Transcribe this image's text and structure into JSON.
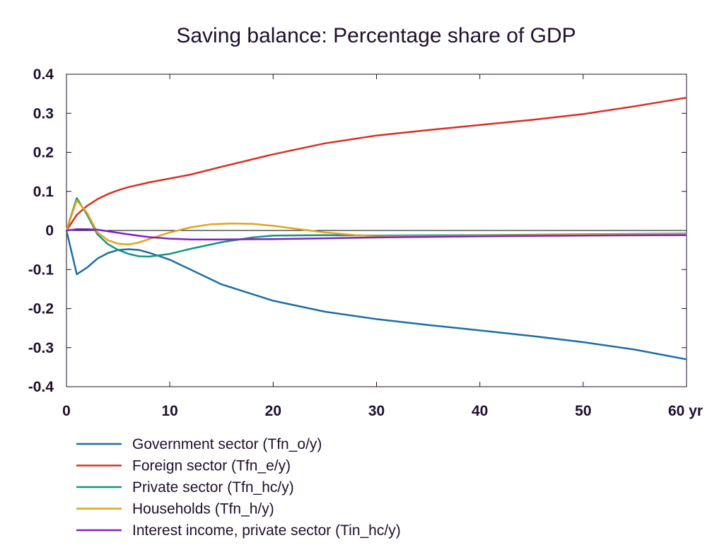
{
  "chart_data": {
    "type": "line",
    "title": "Saving balance: Percentage share of GDP",
    "xlabel": "",
    "ylabel": "",
    "x_unit_label": "yr",
    "xlim": [
      0,
      60
    ],
    "ylim": [
      -0.4,
      0.4
    ],
    "x_ticks": [
      0,
      10,
      20,
      30,
      40,
      50,
      60
    ],
    "x_tick_labels": [
      "0",
      "10",
      "20",
      "30",
      "40",
      "50",
      "60 yr"
    ],
    "y_ticks": [
      -0.4,
      -0.3,
      -0.2,
      -0.1,
      0,
      0.1,
      0.2,
      0.3,
      0.4
    ],
    "y_tick_labels": [
      "-0.4",
      "-0.3",
      "-0.2",
      "-0.1",
      "0",
      "0.1",
      "0.2",
      "0.3",
      "0.4"
    ],
    "grid": false,
    "legend_position": "bottom",
    "series": [
      {
        "name": "Government sector (Tfn_o/y)",
        "color": "#1c6ea4",
        "x": [
          0,
          1,
          2,
          3,
          4,
          5,
          6,
          7,
          8,
          10,
          12,
          15,
          20,
          25,
          30,
          35,
          40,
          45,
          50,
          55,
          60
        ],
        "y": [
          0,
          -0.112,
          -0.095,
          -0.072,
          -0.058,
          -0.05,
          -0.048,
          -0.05,
          -0.057,
          -0.075,
          -0.1,
          -0.138,
          -0.18,
          -0.208,
          -0.227,
          -0.242,
          -0.256,
          -0.27,
          -0.286,
          -0.305,
          -0.33
        ]
      },
      {
        "name": "Foreign sector (Tfn_e/y)",
        "color": "#d92e23",
        "x": [
          0,
          1,
          2,
          3,
          4,
          5,
          6,
          8,
          10,
          12,
          15,
          20,
          25,
          30,
          35,
          40,
          45,
          50,
          55,
          60
        ],
        "y": [
          0,
          0.04,
          0.063,
          0.08,
          0.093,
          0.103,
          0.111,
          0.123,
          0.133,
          0.143,
          0.163,
          0.195,
          0.223,
          0.243,
          0.257,
          0.27,
          0.283,
          0.298,
          0.318,
          0.34
        ]
      },
      {
        "name": "Private sector (Tfn_hc/y)",
        "color": "#16967a",
        "x": [
          0,
          1,
          2,
          3,
          4,
          5,
          6,
          7,
          8,
          10,
          12,
          15,
          18,
          20,
          25,
          30,
          40,
          50,
          60
        ],
        "y": [
          0,
          0.083,
          0.04,
          -0.01,
          -0.035,
          -0.05,
          -0.06,
          -0.066,
          -0.067,
          -0.06,
          -0.047,
          -0.03,
          -0.018,
          -0.013,
          -0.012,
          -0.013,
          -0.012,
          -0.01,
          -0.008
        ]
      },
      {
        "name": "Households (Tfn_h/y)",
        "color": "#e3a41c",
        "x": [
          0,
          1,
          2,
          3,
          4,
          5,
          6,
          7,
          8,
          10,
          12,
          14,
          16,
          18,
          20,
          22,
          25,
          28,
          30,
          35,
          40,
          50,
          60
        ],
        "y": [
          0,
          0.077,
          0.045,
          -0.005,
          -0.025,
          -0.034,
          -0.036,
          -0.031,
          -0.022,
          -0.005,
          0.008,
          0.016,
          0.018,
          0.017,
          0.012,
          0.005,
          -0.005,
          -0.012,
          -0.015,
          -0.015,
          -0.013,
          -0.011,
          -0.009
        ]
      },
      {
        "name": "Interest income, private sector (Tin_hc/y)",
        "color": "#7e22c7",
        "x": [
          0,
          1,
          2,
          3,
          4,
          6,
          8,
          10,
          12,
          15,
          20,
          25,
          30,
          40,
          50,
          60
        ],
        "y": [
          0,
          0.003,
          0.003,
          0.002,
          -0.002,
          -0.01,
          -0.017,
          -0.021,
          -0.023,
          -0.023,
          -0.022,
          -0.02,
          -0.018,
          -0.015,
          -0.013,
          -0.012
        ]
      }
    ]
  }
}
